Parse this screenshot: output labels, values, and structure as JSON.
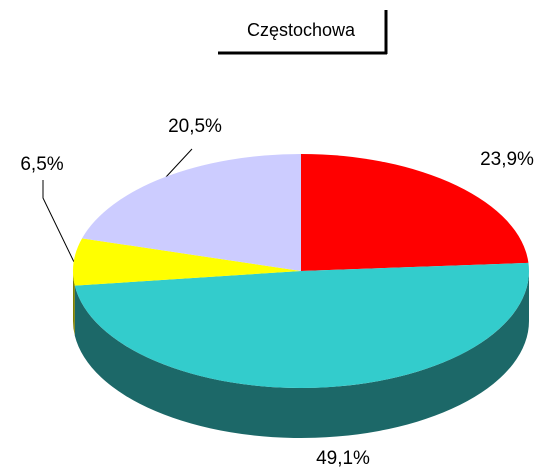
{
  "chart_data": {
    "type": "pie",
    "title": "Częstochowa",
    "categories": [
      null,
      null,
      null,
      null
    ],
    "values": [
      23.9,
      49.1,
      6.5,
      20.5
    ],
    "value_labels": [
      "23,9%",
      "49,1%",
      "6,5%",
      "20,5%"
    ],
    "colors": [
      "#ff0000",
      "#33cccc",
      "#ffff00",
      "#ccccff"
    ],
    "side_colors": [
      "#800000",
      "#1c6868",
      "#808000",
      "#666680"
    ]
  }
}
